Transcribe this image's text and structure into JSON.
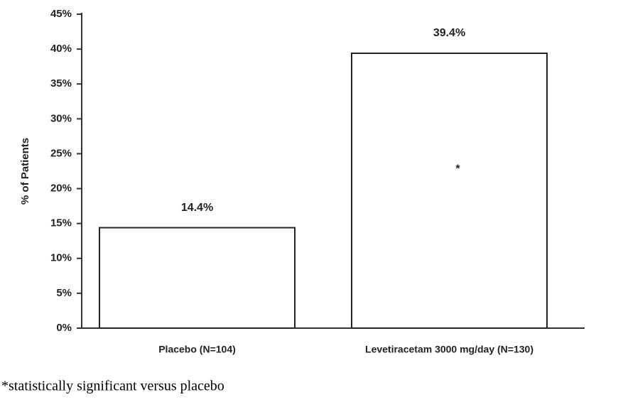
{
  "chart_data": {
    "type": "bar",
    "y_label": "% of Patients",
    "categories": [
      "Placebo (N=104)",
      "Levetiracetam 3000 mg/day (N=130)"
    ],
    "values": [
      14.4,
      39.4
    ],
    "value_labels": [
      "14.4%",
      "39.4%"
    ],
    "color": "#ffffff",
    "ylim": [
      0,
      45
    ],
    "yticks": [
      {
        "value": 0,
        "label": "0%"
      },
      {
        "value": 5,
        "label": "5%"
      },
      {
        "value": 10,
        "label": "10%"
      },
      {
        "value": 15,
        "label": "15%"
      },
      {
        "value": 20,
        "label": "20%"
      },
      {
        "value": 25,
        "label": "25%"
      },
      {
        "value": 30,
        "label": "30%"
      },
      {
        "value": 35,
        "label": "35%"
      },
      {
        "value": 40,
        "label": "40%"
      },
      {
        "value": 45,
        "label": "45%"
      }
    ],
    "grid": false,
    "annotations": [
      {
        "text": "*",
        "category": "Levetiracetam 3000 mg/day (N=130)"
      }
    ],
    "footnote": "*statistically significant versus placebo"
  }
}
